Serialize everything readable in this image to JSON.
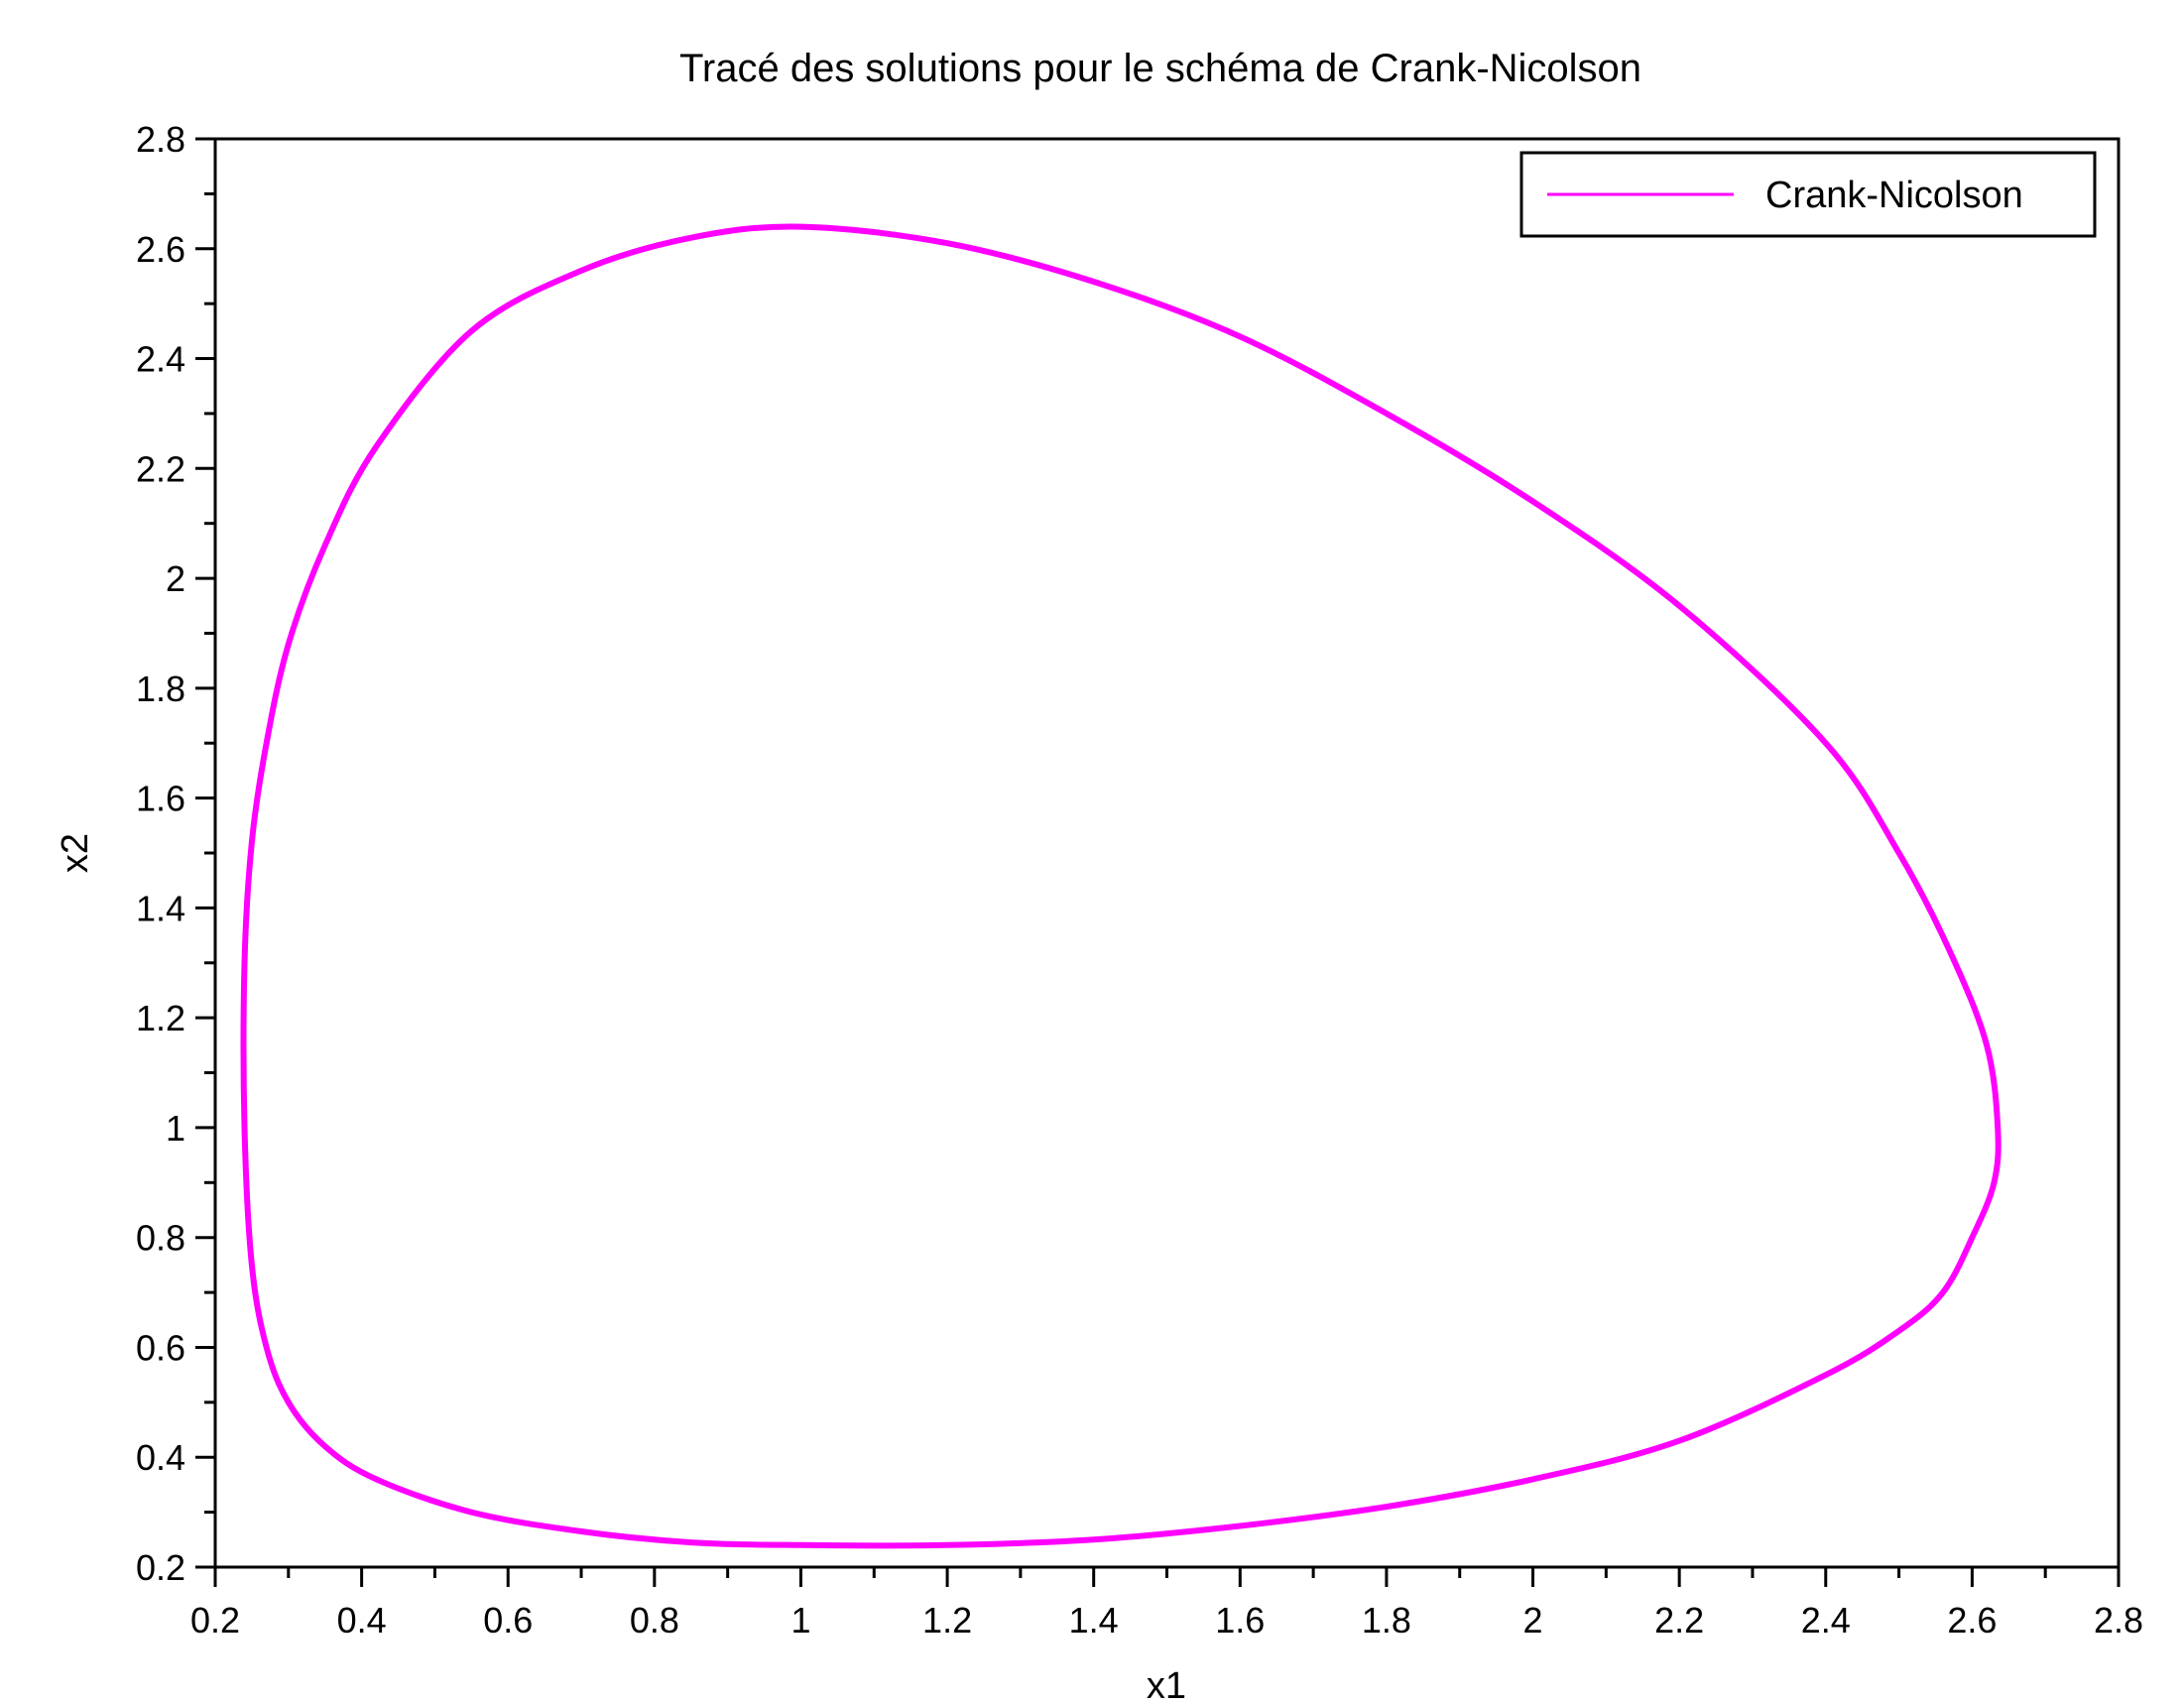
{
  "chart_data": {
    "type": "line",
    "title": "Tracé des solutions pour le schéma de Crank-Nicolson",
    "xlabel": "x1",
    "ylabel": "x2",
    "xlim": [
      0.2,
      2.8
    ],
    "ylim": [
      0.2,
      2.8
    ],
    "xticks": [
      "0.2",
      "0.4",
      "0.6",
      "0.8",
      "1",
      "1.2",
      "1.4",
      "1.6",
      "1.8",
      "2",
      "2.2",
      "2.4",
      "2.6",
      "2.8"
    ],
    "yticks": [
      "0.2",
      "0.4",
      "0.6",
      "0.8",
      "1",
      "1.2",
      "1.4",
      "1.6",
      "1.8",
      "2",
      "2.2",
      "2.4",
      "2.6",
      "2.8"
    ],
    "grid": false,
    "legend": {
      "position": "top-right"
    },
    "series": [
      {
        "name": "Crank-Nicolson",
        "color": "#ff00ff",
        "closed": true,
        "x": [
          1.0,
          0.85,
          0.7,
          0.55,
          0.42,
          0.35,
          0.3,
          0.27,
          0.25,
          0.24,
          0.24,
          0.25,
          0.27,
          0.3,
          0.35,
          0.42,
          0.55,
          0.7,
          0.85,
          1.0,
          1.2,
          1.4,
          1.6,
          1.8,
          2.0,
          2.2,
          2.4,
          2.5,
          2.56,
          2.6,
          2.63,
          2.635,
          2.62,
          2.57,
          2.5,
          2.4,
          2.2,
          2.0,
          1.8,
          1.6,
          1.4,
          1.2
        ],
        "y": [
          2.64,
          2.62,
          2.56,
          2.45,
          2.24,
          2.06,
          1.88,
          1.7,
          1.52,
          1.3,
          1.0,
          0.75,
          0.6,
          0.5,
          0.42,
          0.36,
          0.3,
          0.265,
          0.245,
          0.24,
          0.24,
          0.25,
          0.275,
          0.31,
          0.36,
          0.43,
          0.55,
          0.63,
          0.7,
          0.8,
          0.9,
          1.0,
          1.15,
          1.32,
          1.5,
          1.7,
          1.95,
          2.14,
          2.3,
          2.44,
          2.54,
          2.61
        ]
      }
    ]
  }
}
